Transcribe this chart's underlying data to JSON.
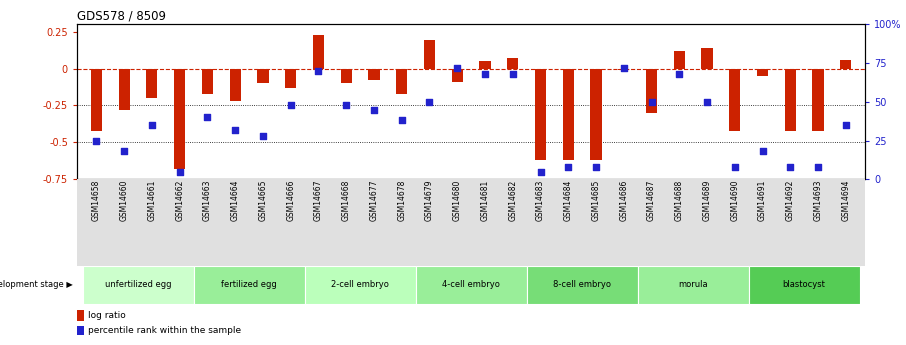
{
  "title": "GDS578 / 8509",
  "samples": [
    "GSM14658",
    "GSM14660",
    "GSM14661",
    "GSM14662",
    "GSM14663",
    "GSM14664",
    "GSM14665",
    "GSM14666",
    "GSM14667",
    "GSM14668",
    "GSM14677",
    "GSM14678",
    "GSM14679",
    "GSM14680",
    "GSM14681",
    "GSM14682",
    "GSM14683",
    "GSM14684",
    "GSM14685",
    "GSM14686",
    "GSM14687",
    "GSM14688",
    "GSM14689",
    "GSM14690",
    "GSM14691",
    "GSM14692",
    "GSM14693",
    "GSM14694"
  ],
  "log_ratio": [
    -0.42,
    -0.28,
    -0.2,
    -0.68,
    -0.17,
    -0.22,
    -0.1,
    -0.13,
    0.23,
    -0.1,
    -0.08,
    -0.17,
    0.19,
    -0.09,
    0.05,
    0.07,
    -0.62,
    -0.62,
    -0.62,
    -0.01,
    -0.3,
    0.12,
    0.14,
    -0.42,
    -0.05,
    -0.42,
    -0.42,
    0.06
  ],
  "percentile": [
    25,
    18,
    35,
    5,
    40,
    32,
    28,
    48,
    70,
    48,
    45,
    38,
    50,
    72,
    68,
    68,
    5,
    8,
    8,
    72,
    50,
    68,
    50,
    8,
    18,
    8,
    8,
    35
  ],
  "stage_groups": [
    {
      "label": "unfertilized egg",
      "start": 0,
      "end": 4,
      "color": "#ccffcc"
    },
    {
      "label": "fertilized egg",
      "start": 4,
      "end": 8,
      "color": "#99ee99"
    },
    {
      "label": "2-cell embryo",
      "start": 8,
      "end": 12,
      "color": "#bbffbb"
    },
    {
      "label": "4-cell embryo",
      "start": 12,
      "end": 16,
      "color": "#99ee99"
    },
    {
      "label": "8-cell embryo",
      "start": 16,
      "end": 20,
      "color": "#77dd77"
    },
    {
      "label": "morula",
      "start": 20,
      "end": 24,
      "color": "#99ee99"
    },
    {
      "label": "blastocyst",
      "start": 24,
      "end": 28,
      "color": "#55cc55"
    }
  ],
  "ylim_left": [
    -0.75,
    0.3
  ],
  "yticks_left": [
    -0.75,
    -0.5,
    -0.25,
    0.0,
    0.25
  ],
  "ytick_labels_left": [
    "-0.75",
    "-0.5",
    "-0.25",
    "0",
    "0.25"
  ],
  "yticks_right_pct": [
    0,
    25,
    50,
    75,
    100
  ],
  "ytick_labels_right": [
    "0",
    "25",
    "50",
    "75",
    "100%"
  ],
  "bar_color": "#cc2200",
  "dot_color": "#2222cc",
  "zero_line_color": "#cc2200",
  "dot_line_color": "#000099"
}
